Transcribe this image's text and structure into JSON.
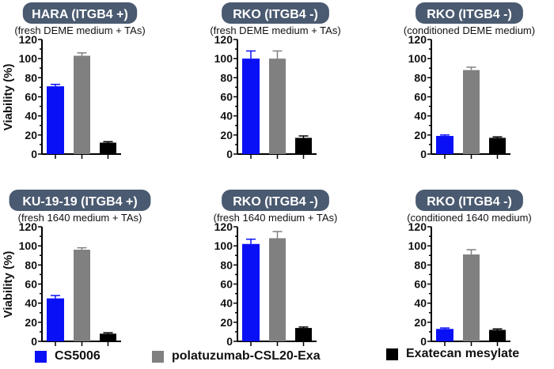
{
  "chart_data": [
    {
      "type": "bar",
      "title": "HARA (ITGB4 +)",
      "subtitle": "(fresh DEME medium + TAs)",
      "ylabel": "Viability (%)",
      "ylim": [
        0,
        120
      ],
      "yticks": [
        0,
        20,
        40,
        60,
        80,
        100,
        120
      ],
      "values": [
        71,
        103,
        12
      ],
      "errors": [
        2,
        3,
        1
      ]
    },
    {
      "type": "bar",
      "title": "RKO (ITGB4 -)",
      "subtitle": "(fresh DEME medium + TAs)",
      "ylabel": "",
      "ylim": [
        0,
        120
      ],
      "yticks": [
        0,
        20,
        40,
        60,
        80,
        100,
        120
      ],
      "values": [
        100,
        100,
        17
      ],
      "errors": [
        8,
        8,
        2
      ]
    },
    {
      "type": "bar",
      "title": "RKO (ITGB4 -)",
      "subtitle": "(conditioned DEME medium)",
      "ylabel": "",
      "ylim": [
        0,
        120
      ],
      "yticks": [
        0,
        20,
        40,
        60,
        80,
        100,
        120
      ],
      "values": [
        19,
        88,
        17
      ],
      "errors": [
        1,
        3,
        1
      ]
    },
    {
      "type": "bar",
      "title": "KU-19-19 (ITGB4 +)",
      "subtitle": "(fresh 1640 medium + TAs)",
      "ylabel": "Viability (%)",
      "ylim": [
        0,
        120
      ],
      "yticks": [
        0,
        20,
        40,
        60,
        80,
        100,
        120
      ],
      "values": [
        45,
        96,
        8
      ],
      "errors": [
        3,
        2,
        1
      ]
    },
    {
      "type": "bar",
      "title": "RKO (ITGB4 -)",
      "subtitle": "(fresh 1640 medium + TAs)",
      "ylabel": "",
      "ylim": [
        0,
        120
      ],
      "yticks": [
        0,
        20,
        40,
        60,
        80,
        100,
        120
      ],
      "values": [
        102,
        108,
        14
      ],
      "errors": [
        5,
        7,
        1
      ]
    },
    {
      "type": "bar",
      "title": "RKO (ITGB4 -)",
      "subtitle": "(conditioned 1640 medium)",
      "ylabel": "",
      "ylim": [
        0,
        120
      ],
      "yticks": [
        0,
        20,
        40,
        60,
        80,
        100,
        120
      ],
      "values": [
        13,
        91,
        12
      ],
      "errors": [
        1,
        5,
        1
      ]
    }
  ],
  "legend": [
    {
      "label": "CS5006",
      "color": "#0a10f5"
    },
    {
      "label": "polatuzumab-CSL20-Exa",
      "color": "#808080"
    },
    {
      "label": "Exatecan mesylate",
      "color": "#000000"
    }
  ],
  "pill_color": "#4a5a70"
}
